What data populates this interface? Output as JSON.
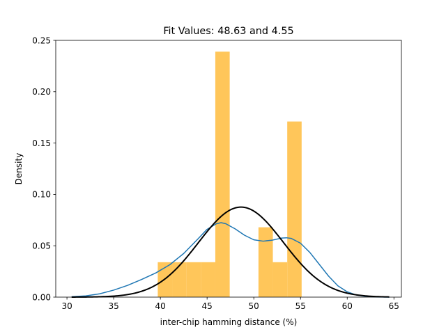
{
  "chart_data": {
    "type": "histogram",
    "title": "Fit Values: 48.63 and 4.55",
    "xlabel": "inter-chip hamming distance (%)",
    "ylabel": "Density",
    "xlim": [
      28.8,
      65.8
    ],
    "ylim": [
      0,
      0.25
    ],
    "xticks": [
      30,
      35,
      40,
      45,
      50,
      55,
      60,
      65
    ],
    "yticks": [
      0.0,
      0.05,
      0.1,
      0.15,
      0.2,
      0.25
    ],
    "ytick_format": 2,
    "grid": false,
    "histogram": {
      "color": "#ffc65a",
      "bins": [
        {
          "x0": 39.72,
          "x1": 41.26,
          "density": 0.034
        },
        {
          "x0": 41.26,
          "x1": 42.8,
          "density": 0.034
        },
        {
          "x0": 42.8,
          "x1": 44.34,
          "density": 0.034
        },
        {
          "x0": 44.34,
          "x1": 45.88,
          "density": 0.034
        },
        {
          "x0": 45.88,
          "x1": 47.42,
          "density": 0.239
        },
        {
          "x0": 47.42,
          "x1": 48.96,
          "density": 0.0
        },
        {
          "x0": 48.96,
          "x1": 50.5,
          "density": 0.0
        },
        {
          "x0": 50.5,
          "x1": 52.04,
          "density": 0.068
        },
        {
          "x0": 52.04,
          "x1": 53.58,
          "density": 0.034
        },
        {
          "x0": 53.58,
          "x1": 55.12,
          "density": 0.171
        }
      ]
    },
    "series": [
      {
        "color": "#1f77b4",
        "line_width": 1.5,
        "x": [
          30.5,
          32,
          33.5,
          35,
          36.5,
          38,
          39.5,
          41,
          42.5,
          44,
          45,
          46,
          46.5,
          47,
          48,
          49,
          50,
          51,
          52,
          53,
          53.5,
          54,
          55,
          56,
          57,
          58,
          59,
          60,
          61,
          62,
          63,
          64.5
        ],
        "y": [
          0.0004,
          0.0012,
          0.0032,
          0.0068,
          0.0115,
          0.0172,
          0.0235,
          0.0315,
          0.0425,
          0.0565,
          0.066,
          0.0715,
          0.0725,
          0.0715,
          0.0665,
          0.0603,
          0.0558,
          0.0545,
          0.0555,
          0.0575,
          0.0578,
          0.0572,
          0.0525,
          0.0435,
          0.032,
          0.0205,
          0.011,
          0.0052,
          0.002,
          0.0007,
          0.0002,
          0.0
        ]
      },
      {
        "color": "#000000",
        "line_width": 2,
        "type": "normal_fit",
        "mean": 48.63,
        "std": 4.55,
        "x_range": [
          30.5,
          64.5
        ]
      }
    ]
  }
}
